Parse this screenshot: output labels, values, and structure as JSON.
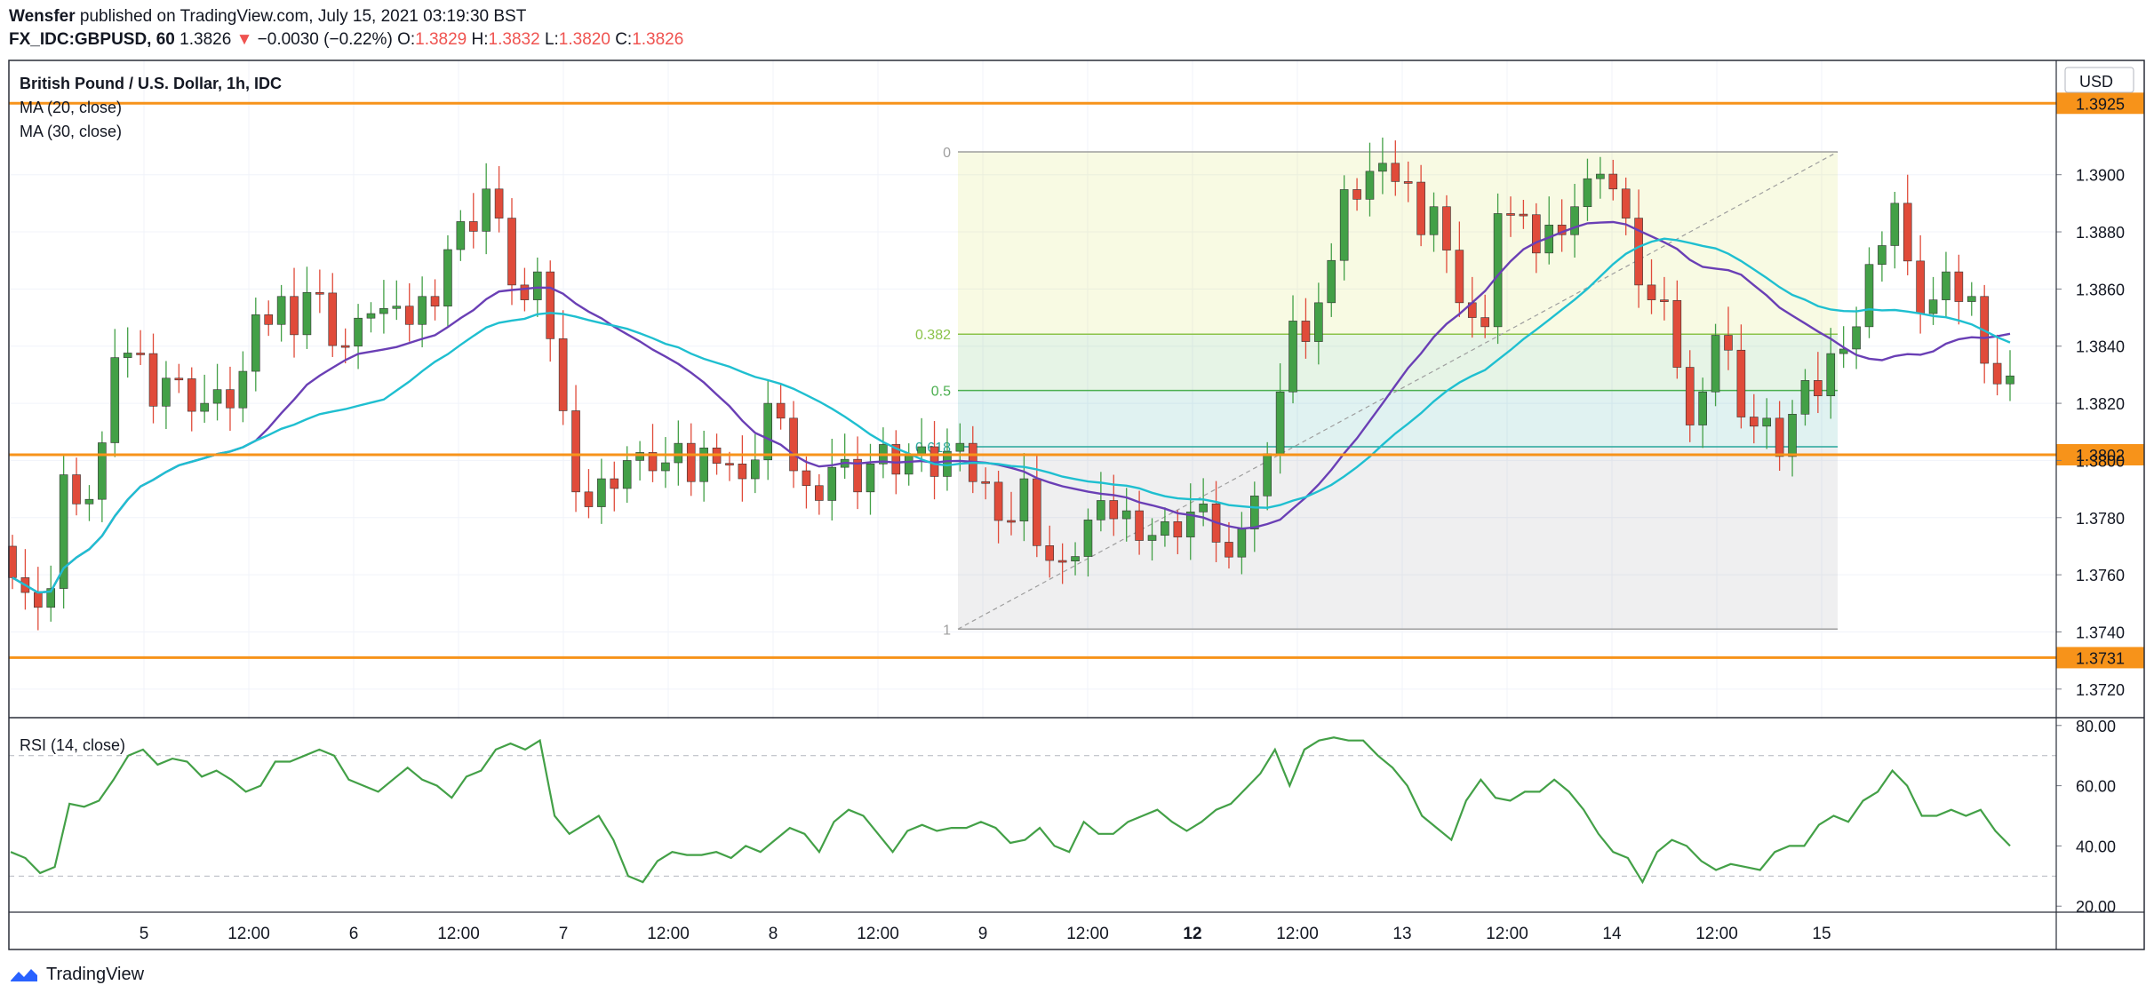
{
  "header": {
    "author": "Wensfer",
    "published_text": "published on TradingView.com, July 15, 2021 03:19:30 BST",
    "symbol": "FX_IDC:GBPUSD, 60",
    "last": "1.3826",
    "change": "−0.0030 (−0.22%)",
    "o_label": "O:",
    "o": "1.3829",
    "h_label": "H:",
    "h": "1.3832",
    "l_label": "L:",
    "l": "1.3820",
    "c_label": "C:",
    "c": "1.3826"
  },
  "legend": {
    "instrument": "British Pound / U.S. Dollar, 1h, IDC",
    "ma20": "MA (20, close)",
    "ma30": "MA (30, close)",
    "rsi": "RSI (14, close)"
  },
  "footer": {
    "brand": "TradingView"
  },
  "colors": {
    "up": "#43a047",
    "down": "#e04b3a",
    "ma20": "#6a3fb5",
    "ma30": "#1fbfd0",
    "hline": "#f7931a",
    "rsi": "#43a047",
    "fib_text": "#8bc34a"
  },
  "chart_data": {
    "type": "candlestick",
    "currency": "USD",
    "y_ticks": [
      1.372,
      1.374,
      1.376,
      1.378,
      1.38,
      1.382,
      1.384,
      1.386,
      1.388,
      1.39
    ],
    "ylim": [
      1.371,
      1.394
    ],
    "x_ticks": [
      {
        "label": "5",
        "i": 18,
        "bold": false
      },
      {
        "label": "12:00",
        "i": 30,
        "bold": false
      },
      {
        "label": "6",
        "i": 42,
        "bold": false
      },
      {
        "label": "12:00",
        "i": 54,
        "bold": false
      },
      {
        "label": "7",
        "i": 66,
        "bold": false
      },
      {
        "label": "12:00",
        "i": 78,
        "bold": false
      },
      {
        "label": "8",
        "i": 90,
        "bold": false
      },
      {
        "label": "12:00",
        "i": 102,
        "bold": false
      },
      {
        "label": "9",
        "i": 114,
        "bold": false
      },
      {
        "label": "12:00",
        "i": 126,
        "bold": false
      },
      {
        "label": "12",
        "i": 138,
        "bold": true
      },
      {
        "label": "12:00",
        "i": 150,
        "bold": false
      },
      {
        "label": "13",
        "i": 162,
        "bold": false
      },
      {
        "label": "12:00",
        "i": 174,
        "bold": false
      },
      {
        "label": "14",
        "i": 186,
        "bold": false
      },
      {
        "label": "12:00",
        "i": 198,
        "bold": false
      },
      {
        "label": "15",
        "i": 210,
        "bold": false
      }
    ],
    "horizontal_levels": [
      {
        "value": 1.3925,
        "label": "1.3925"
      },
      {
        "value": 1.3802,
        "label": "1.3802"
      },
      {
        "value": 1.3731,
        "label": "1.3731"
      }
    ],
    "fibonacci": {
      "high": 1.3908,
      "low": 1.3741,
      "start_i": 101.2,
      "end_i": 193.4,
      "levels": [
        {
          "ratio": 0,
          "label": "0"
        },
        {
          "ratio": 0.382,
          "label": "0.382"
        },
        {
          "ratio": 0.5,
          "label": "0.5"
        },
        {
          "ratio": 0.618,
          "label": "0.618"
        },
        {
          "ratio": 1,
          "label": "1"
        }
      ]
    },
    "ohlc_keypoints": [
      [
        0,
        1.3765
      ],
      [
        1,
        1.3755
      ],
      [
        2,
        1.3745
      ],
      [
        3,
        1.376
      ],
      [
        4,
        1.3795
      ],
      [
        5,
        1.378
      ],
      [
        6,
        1.379
      ],
      [
        7,
        1.3805
      ],
      [
        8,
        1.383
      ],
      [
        9,
        1.384
      ],
      [
        10,
        1.3835
      ],
      [
        11,
        1.3825
      ],
      [
        12,
        1.383
      ],
      [
        13,
        1.3825
      ],
      [
        14,
        1.3822
      ],
      [
        15,
        1.382
      ],
      [
        16,
        1.382
      ],
      [
        17,
        1.3822
      ],
      [
        18,
        1.383
      ],
      [
        19,
        1.3845
      ],
      [
        20,
        1.385
      ],
      [
        21,
        1.3855
      ],
      [
        22,
        1.385
      ],
      [
        23,
        1.386
      ],
      [
        24,
        1.3855
      ],
      [
        25,
        1.3845
      ],
      [
        26,
        1.384
      ],
      [
        27,
        1.3845
      ],
      [
        28,
        1.3855
      ],
      [
        29,
        1.3852
      ],
      [
        30,
        1.3848
      ],
      [
        31,
        1.385
      ],
      [
        32,
        1.3855
      ],
      [
        33,
        1.386
      ],
      [
        34,
        1.3875
      ],
      [
        35,
        1.388
      ],
      [
        36,
        1.3885
      ],
      [
        37,
        1.3895
      ],
      [
        38,
        1.388
      ],
      [
        39,
        1.3865
      ],
      [
        40,
        1.3855
      ],
      [
        41,
        1.386
      ],
      [
        42,
        1.3845
      ],
      [
        43,
        1.3815
      ],
      [
        44,
        1.3795
      ],
      [
        45,
        1.3785
      ],
      [
        46,
        1.379
      ],
      [
        47,
        1.3795
      ],
      [
        48,
        1.38
      ],
      [
        49,
        1.3798
      ],
      [
        50,
        1.38
      ],
      [
        51,
        1.3798
      ],
      [
        52,
        1.38
      ],
      [
        53,
        1.3795
      ],
      [
        54,
        1.3802
      ],
      [
        55,
        1.3805
      ],
      [
        56,
        1.38
      ],
      [
        57,
        1.379
      ],
      [
        58,
        1.3805
      ],
      [
        59,
        1.382
      ],
      [
        60,
        1.381
      ],
      [
        61,
        1.38
      ],
      [
        62,
        1.379
      ],
      [
        63,
        1.378
      ],
      [
        64,
        1.38
      ],
      [
        65,
        1.3798
      ],
      [
        66,
        1.3795
      ],
      [
        67,
        1.38
      ],
      [
        68,
        1.3802
      ],
      [
        69,
        1.38
      ],
      [
        70,
        1.3802
      ],
      [
        71,
        1.38
      ],
      [
        72,
        1.3798
      ],
      [
        73,
        1.3802
      ],
      [
        74,
        1.38
      ],
      [
        75,
        1.3795
      ],
      [
        76,
        1.379
      ],
      [
        77,
        1.3785
      ],
      [
        78,
        1.378
      ],
      [
        79,
        1.379
      ],
      [
        80,
        1.3775
      ],
      [
        81,
        1.3765
      ],
      [
        82,
        1.376
      ],
      [
        83,
        1.377
      ],
      [
        84,
        1.3778
      ],
      [
        85,
        1.378
      ],
      [
        86,
        1.3782
      ],
      [
        87,
        1.378
      ],
      [
        88,
        1.3778
      ],
      [
        89,
        1.3775
      ],
      [
        90,
        1.3775
      ],
      [
        91,
        1.3778
      ],
      [
        92,
        1.3782
      ],
      [
        93,
        1.378
      ],
      [
        94,
        1.3775
      ],
      [
        95,
        1.3765
      ],
      [
        96,
        1.377
      ],
      [
        97,
        1.379
      ],
      [
        98,
        1.38
      ],
      [
        99,
        1.383
      ],
      [
        100,
        1.385
      ],
      [
        101,
        1.3838
      ],
      [
        102,
        1.386
      ],
      [
        103,
        1.387
      ],
      [
        104,
        1.389
      ],
      [
        105,
        1.3895
      ],
      [
        106,
        1.39
      ],
      [
        107,
        1.3898
      ],
      [
        108,
        1.39
      ],
      [
        109,
        1.3895
      ],
      [
        110,
        1.3885
      ],
      [
        111,
        1.389
      ],
      [
        112,
        1.387
      ],
      [
        113,
        1.386
      ],
      [
        114,
        1.385
      ],
      [
        115,
        1.3842
      ],
      [
        116,
        1.389
      ],
      [
        117,
        1.3885
      ],
      [
        118,
        1.388
      ],
      [
        119,
        1.3875
      ],
      [
        120,
        1.388
      ],
      [
        121,
        1.3885
      ],
      [
        122,
        1.389
      ],
      [
        123,
        1.3895
      ],
      [
        124,
        1.3905
      ],
      [
        125,
        1.3895
      ],
      [
        126,
        1.388
      ],
      [
        127,
        1.3865
      ],
      [
        128,
        1.3855
      ],
      [
        129,
        1.385
      ],
      [
        130,
        1.3835
      ],
      [
        131,
        1.381
      ],
      [
        132,
        1.383
      ],
      [
        133,
        1.3845
      ],
      [
        134,
        1.3835
      ],
      [
        135,
        1.382
      ],
      [
        136,
        1.3812
      ],
      [
        137,
        1.381
      ],
      [
        138,
        1.3805
      ],
      [
        139,
        1.3815
      ],
      [
        140,
        1.3822
      ],
      [
        141,
        1.3825
      ],
      [
        142,
        1.3835
      ],
      [
        143,
        1.3845
      ],
      [
        144,
        1.3848
      ],
      [
        145,
        1.3865
      ],
      [
        146,
        1.388
      ],
      [
        147,
        1.389
      ],
      [
        148,
        1.3865
      ],
      [
        149,
        1.3855
      ],
      [
        150,
        1.3855
      ],
      [
        151,
        1.386
      ],
      [
        152,
        1.3858
      ],
      [
        153,
        1.3855
      ],
      [
        154,
        1.384
      ],
      [
        155,
        1.3828
      ],
      [
        156,
        1.3826
      ]
    ],
    "rsi": {
      "ylim": [
        18,
        82
      ],
      "y_ticks": [
        20,
        40,
        60,
        80
      ],
      "bands": [
        30,
        70
      ],
      "keypoints": [
        [
          0,
          38
        ],
        [
          1,
          36
        ],
        [
          2,
          31
        ],
        [
          3,
          33
        ],
        [
          4,
          54
        ],
        [
          5,
          53
        ],
        [
          6,
          55
        ],
        [
          7,
          62
        ],
        [
          8,
          70
        ],
        [
          9,
          72
        ],
        [
          10,
          67
        ],
        [
          11,
          69
        ],
        [
          12,
          68
        ],
        [
          13,
          63
        ],
        [
          14,
          65
        ],
        [
          15,
          62
        ],
        [
          16,
          58
        ],
        [
          17,
          60
        ],
        [
          18,
          68
        ],
        [
          19,
          68
        ],
        [
          20,
          70
        ],
        [
          21,
          72
        ],
        [
          22,
          70
        ],
        [
          23,
          62
        ],
        [
          24,
          60
        ],
        [
          25,
          58
        ],
        [
          26,
          62
        ],
        [
          27,
          66
        ],
        [
          28,
          62
        ],
        [
          29,
          60
        ],
        [
          30,
          56
        ],
        [
          31,
          63
        ],
        [
          32,
          65
        ],
        [
          33,
          72
        ],
        [
          34,
          74
        ],
        [
          35,
          72
        ],
        [
          36,
          75
        ],
        [
          37,
          50
        ],
        [
          38,
          44
        ],
        [
          39,
          47
        ],
        [
          40,
          50
        ],
        [
          41,
          42
        ],
        [
          42,
          30
        ],
        [
          43,
          28
        ],
        [
          44,
          35
        ],
        [
          45,
          38
        ],
        [
          46,
          37
        ],
        [
          47,
          37
        ],
        [
          48,
          38
        ],
        [
          49,
          36
        ],
        [
          50,
          40
        ],
        [
          51,
          38
        ],
        [
          52,
          42
        ],
        [
          53,
          46
        ],
        [
          54,
          44
        ],
        [
          55,
          38
        ],
        [
          56,
          48
        ],
        [
          57,
          52
        ],
        [
          58,
          50
        ],
        [
          59,
          44
        ],
        [
          60,
          38
        ],
        [
          61,
          45
        ],
        [
          62,
          47
        ],
        [
          63,
          45
        ],
        [
          64,
          46
        ],
        [
          65,
          46
        ],
        [
          66,
          48
        ],
        [
          67,
          46
        ],
        [
          68,
          41
        ],
        [
          69,
          42
        ],
        [
          70,
          46
        ],
        [
          71,
          40
        ],
        [
          72,
          38
        ],
        [
          73,
          48
        ],
        [
          74,
          44
        ],
        [
          75,
          44
        ],
        [
          76,
          48
        ],
        [
          77,
          50
        ],
        [
          78,
          52
        ],
        [
          79,
          48
        ],
        [
          80,
          45
        ],
        [
          81,
          48
        ],
        [
          82,
          52
        ],
        [
          83,
          54
        ],
        [
          84,
          59
        ],
        [
          85,
          64
        ],
        [
          86,
          72
        ],
        [
          87,
          60
        ],
        [
          88,
          72
        ],
        [
          89,
          75
        ],
        [
          90,
          76
        ],
        [
          91,
          75
        ],
        [
          92,
          75
        ],
        [
          93,
          70
        ],
        [
          94,
          66
        ],
        [
          95,
          60
        ],
        [
          96,
          50
        ],
        [
          97,
          46
        ],
        [
          98,
          42
        ],
        [
          99,
          55
        ],
        [
          100,
          62
        ],
        [
          101,
          56
        ],
        [
          102,
          55
        ],
        [
          103,
          58
        ],
        [
          104,
          58
        ],
        [
          105,
          62
        ],
        [
          106,
          58
        ],
        [
          107,
          52
        ],
        [
          108,
          44
        ],
        [
          109,
          38
        ],
        [
          110,
          36
        ],
        [
          111,
          28
        ],
        [
          112,
          38
        ],
        [
          113,
          42
        ],
        [
          114,
          40
        ],
        [
          115,
          35
        ],
        [
          116,
          32
        ],
        [
          117,
          34
        ],
        [
          118,
          33
        ],
        [
          119,
          32
        ],
        [
          120,
          38
        ],
        [
          121,
          40
        ],
        [
          122,
          40
        ],
        [
          123,
          47
        ],
        [
          124,
          50
        ],
        [
          125,
          48
        ],
        [
          126,
          55
        ],
        [
          127,
          58
        ],
        [
          128,
          65
        ],
        [
          129,
          60
        ],
        [
          130,
          50
        ],
        [
          131,
          50
        ],
        [
          132,
          52
        ],
        [
          133,
          50
        ],
        [
          134,
          52
        ],
        [
          135,
          45
        ],
        [
          136,
          40
        ]
      ]
    }
  }
}
